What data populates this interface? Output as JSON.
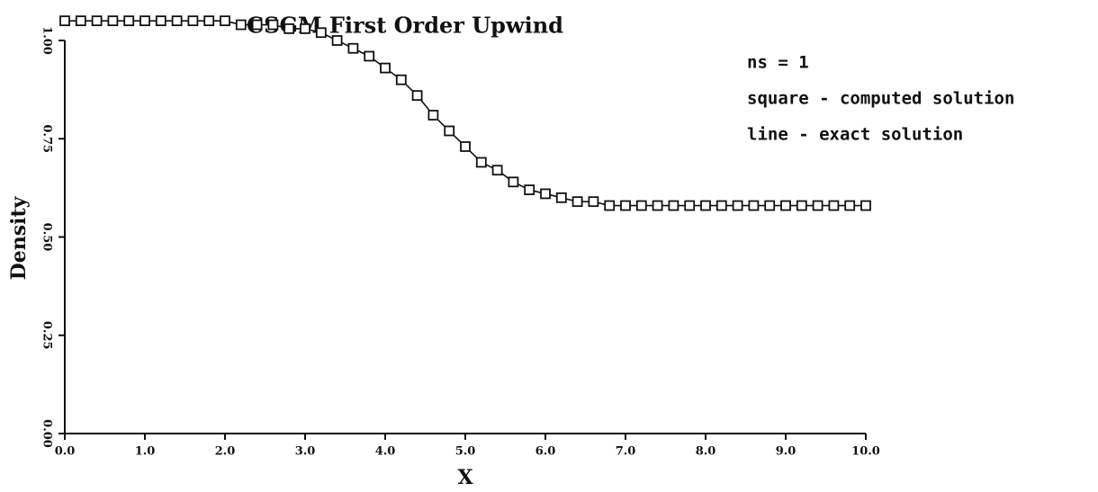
{
  "chart_data": {
    "type": "scatter-line",
    "title": "CSGM First Order Upwind",
    "xlabel": "X",
    "ylabel": "Density",
    "annotations": [
      "ns =  1",
      "square - computed solution",
      "line   - exact solution"
    ],
    "x": [
      0.0,
      0.2,
      0.4,
      0.6,
      0.8,
      1.0,
      1.2,
      1.4,
      1.6,
      1.8,
      2.0,
      2.2,
      2.4,
      2.6,
      2.8,
      3.0,
      3.2,
      3.4,
      3.6,
      3.8,
      4.0,
      4.2,
      4.4,
      4.6,
      4.8,
      5.0,
      5.2,
      5.4,
      5.6,
      5.8,
      6.0,
      6.2,
      6.4,
      6.6,
      6.8,
      7.0,
      7.2,
      7.4,
      7.6,
      7.8,
      8.0,
      8.2,
      8.4,
      8.6,
      8.8,
      9.0,
      9.2,
      9.4,
      9.6,
      9.8,
      10.0
    ],
    "series": [
      {
        "marker": "square",
        "color": "#111111",
        "values": [
          1.05,
          1.05,
          1.05,
          1.05,
          1.05,
          1.05,
          1.05,
          1.05,
          1.05,
          1.05,
          1.05,
          1.04,
          1.04,
          1.04,
          1.03,
          1.03,
          1.02,
          1.0,
          0.98,
          0.96,
          0.93,
          0.9,
          0.86,
          0.81,
          0.77,
          0.73,
          0.69,
          0.67,
          0.64,
          0.62,
          0.61,
          0.6,
          0.59,
          0.59,
          0.58,
          0.58,
          0.58,
          0.58,
          0.58,
          0.58,
          0.58,
          0.58,
          0.58,
          0.58,
          0.58,
          0.58,
          0.58,
          0.58,
          0.58,
          0.58,
          0.58
        ]
      },
      {
        "marker": "line",
        "color": "#111111",
        "values": [
          1.05,
          1.05,
          1.05,
          1.05,
          1.05,
          1.05,
          1.05,
          1.05,
          1.05,
          1.05,
          1.05,
          1.04,
          1.04,
          1.04,
          1.03,
          1.03,
          1.02,
          1.0,
          0.98,
          0.96,
          0.93,
          0.9,
          0.86,
          0.81,
          0.77,
          0.73,
          0.69,
          0.67,
          0.64,
          0.62,
          0.61,
          0.6,
          0.59,
          0.59,
          0.58,
          0.58,
          0.58,
          0.58,
          0.58,
          0.58,
          0.58,
          0.58,
          0.58,
          0.58,
          0.58,
          0.58,
          0.58,
          0.58,
          0.58,
          0.58,
          0.58
        ]
      }
    ],
    "xlim": [
      0,
      10
    ],
    "ylim": [
      0,
      1
    ],
    "xticks": [
      {
        "value": 0,
        "label": "0.0"
      },
      {
        "value": 1,
        "label": "1.0"
      },
      {
        "value": 2,
        "label": "2.0"
      },
      {
        "value": 3,
        "label": "3.0"
      },
      {
        "value": 4,
        "label": "4.0"
      },
      {
        "value": 5,
        "label": "5.0"
      },
      {
        "value": 6,
        "label": "6.0"
      },
      {
        "value": 7,
        "label": "7.0"
      },
      {
        "value": 8,
        "label": "8.0"
      },
      {
        "value": 9,
        "label": "9.0"
      },
      {
        "value": 10,
        "label": "10.0"
      }
    ],
    "yticks": [
      {
        "value": 0,
        "label": "0.00"
      },
      {
        "value": 0.25,
        "label": "0.25"
      },
      {
        "value": 0.5,
        "label": "0.50"
      },
      {
        "value": 0.75,
        "label": "0.75"
      },
      {
        "value": 1,
        "label": "1.00"
      }
    ],
    "grid": false
  }
}
